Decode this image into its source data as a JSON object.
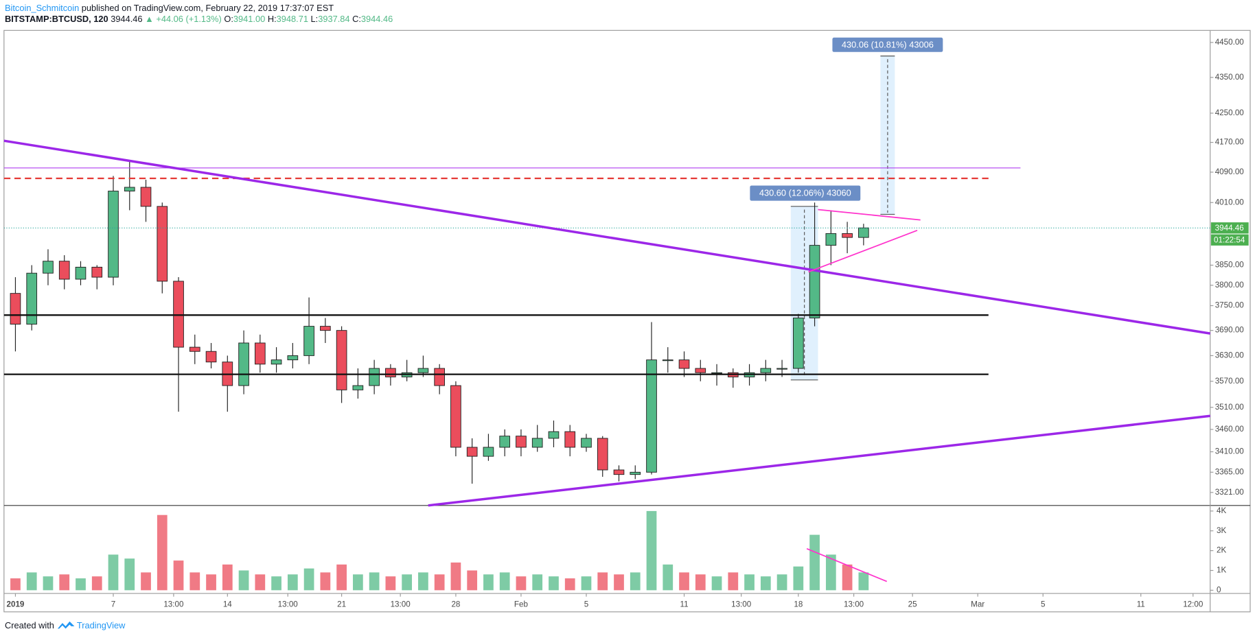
{
  "header": {
    "author": "Bitcoin_Schmitcoin",
    "published": "published on TradingView.com, February 22, 2019 17:37:07 EST",
    "symbol": "BITSTAMP:BTCUSD, 120",
    "last": "3944.46",
    "change": "▲ +44.06 (+1.13%)",
    "ohlc": [
      {
        "key": "O:",
        "value": "3941.00"
      },
      {
        "key": "H:",
        "value": "3948.71"
      },
      {
        "key": "L:",
        "value": "3937.84"
      },
      {
        "key": "C:",
        "value": "3944.46"
      }
    ]
  },
  "chart_data": {
    "type": "candlestick",
    "x": [
      1,
      2,
      3,
      4,
      5,
      6,
      7,
      8,
      9,
      10,
      11,
      12,
      13,
      14,
      15,
      16,
      17,
      18,
      19,
      20,
      21,
      22,
      23,
      24,
      25,
      26,
      27,
      28,
      29,
      30,
      31,
      32,
      33,
      34,
      35,
      36,
      37,
      38,
      39,
      40,
      41,
      42,
      43,
      44,
      45,
      46,
      47,
      48,
      49,
      50,
      51,
      52,
      53
    ],
    "open": [
      3780,
      3705,
      3830,
      3860,
      3815,
      3845,
      3820,
      4040,
      4050,
      4000,
      3810,
      3650,
      3640,
      3615,
      3560,
      3660,
      3610,
      3620,
      3630,
      3700,
      3690,
      3550,
      3560,
      3600,
      3580,
      3590,
      3600,
      3560,
      3420,
      3400,
      3420,
      3445,
      3420,
      3440,
      3455,
      3420,
      3440,
      3370,
      3360,
      3365,
      3620,
      3620,
      3600,
      3590,
      3590,
      3580,
      3590,
      3600,
      3600,
      3720,
      3900,
      3930,
      3920
    ],
    "high": [
      3820,
      3850,
      3890,
      3875,
      3860,
      3850,
      4080,
      4120,
      4070,
      4010,
      3820,
      3680,
      3660,
      3630,
      3690,
      3680,
      3650,
      3660,
      3770,
      3720,
      3700,
      3600,
      3620,
      3610,
      3620,
      3630,
      3610,
      3570,
      3440,
      3450,
      3460,
      3460,
      3470,
      3480,
      3470,
      3450,
      3445,
      3380,
      3380,
      3710,
      3650,
      3640,
      3620,
      3610,
      3600,
      3610,
      3620,
      3620,
      3730,
      4010,
      3990,
      3960,
      3955
    ],
    "low": [
      3640,
      3690,
      3800,
      3790,
      3800,
      3790,
      3800,
      3990,
      3960,
      3780,
      3500,
      3610,
      3600,
      3500,
      3540,
      3590,
      3590,
      3600,
      3610,
      3660,
      3520,
      3530,
      3540,
      3560,
      3570,
      3580,
      3540,
      3400,
      3340,
      3390,
      3400,
      3400,
      3410,
      3420,
      3400,
      3410,
      3355,
      3345,
      3350,
      3360,
      3590,
      3580,
      3570,
      3560,
      3555,
      3560,
      3570,
      3580,
      3590,
      3700,
      3850,
      3880,
      3900
    ],
    "close": [
      3705,
      3830,
      3860,
      3815,
      3845,
      3820,
      4040,
      4050,
      4000,
      3810,
      3650,
      3640,
      3615,
      3560,
      3660,
      3610,
      3620,
      3630,
      3700,
      3690,
      3550,
      3560,
      3600,
      3580,
      3590,
      3600,
      3560,
      3420,
      3400,
      3420,
      3445,
      3420,
      3440,
      3455,
      3420,
      3440,
      3370,
      3360,
      3365,
      3620,
      3620,
      3600,
      3590,
      3590,
      3580,
      3590,
      3600,
      3600,
      3720,
      3900,
      3930,
      3920,
      3944.46
    ],
    "volume": [
      600,
      900,
      700,
      800,
      600,
      700,
      1800,
      1600,
      900,
      3800,
      1500,
      900,
      800,
      1300,
      1000,
      800,
      700,
      800,
      1100,
      900,
      1300,
      800,
      900,
      700,
      800,
      900,
      800,
      1400,
      1000,
      800,
      900,
      700,
      800,
      700,
      600,
      700,
      900,
      800,
      900,
      4000,
      1300,
      900,
      800,
      700,
      900,
      800,
      700,
      800,
      1200,
      2800,
      1800,
      1300,
      900
    ],
    "up_color": "#53b987",
    "down_color": "#eb4d5c",
    "xlim": [
      0.3,
      74.25
    ],
    "xticks": [
      {
        "value": 1,
        "label": "2019"
      },
      {
        "value": 7,
        "label": "7"
      },
      {
        "value": 10.7,
        "label": "13:00"
      },
      {
        "value": 14,
        "label": "14"
      },
      {
        "value": 17.7,
        "label": "13:00"
      },
      {
        "value": 21,
        "label": "21"
      },
      {
        "value": 24.6,
        "label": "13:00"
      },
      {
        "value": 28,
        "label": "28"
      },
      {
        "value": 32,
        "label": "Feb"
      },
      {
        "value": 36,
        "label": "5"
      },
      {
        "value": 42,
        "label": "11"
      },
      {
        "value": 45.5,
        "label": "13:00"
      },
      {
        "value": 49,
        "label": "18"
      },
      {
        "value": 52.4,
        "label": "13:00"
      },
      {
        "value": 56,
        "label": "25"
      },
      {
        "value": 60,
        "label": "Mar"
      },
      {
        "value": 64,
        "label": "5"
      },
      {
        "value": 70,
        "label": "11"
      },
      {
        "value": 73.2,
        "label": "12:00"
      }
    ],
    "ylim": [
      3293,
      4485
    ],
    "log_scale": true,
    "yticks": [
      {
        "value": 4450,
        "label": "4450.00"
      },
      {
        "value": 4350,
        "label": "4350.00"
      },
      {
        "value": 4250,
        "label": "4250.00"
      },
      {
        "value": 4170,
        "label": "4170.00"
      },
      {
        "value": 4090,
        "label": "4090.00"
      },
      {
        "value": 4010,
        "label": "4010.00"
      },
      {
        "value": 3850,
        "label": "3850.00"
      },
      {
        "value": 3800,
        "label": "3800.00"
      },
      {
        "value": 3750,
        "label": "3750.00"
      },
      {
        "value": 3690,
        "label": "3690.00"
      },
      {
        "value": 3630,
        "label": "3630.00"
      },
      {
        "value": 3570,
        "label": "3570.00"
      },
      {
        "value": 3510,
        "label": "3510.00"
      },
      {
        "value": 3460,
        "label": "3460.00"
      },
      {
        "value": 3410,
        "label": "3410.00"
      },
      {
        "value": 3365,
        "label": "3365.00"
      },
      {
        "value": 3321,
        "label": "3321.00"
      }
    ],
    "volume_ylim": [
      0,
      4200
    ],
    "volume_yticks": [
      0,
      {
        "value": 1000,
        "label": "1K"
      },
      {
        "value": 2000,
        "label": "2K"
      },
      {
        "value": 3000,
        "label": "3K"
      },
      {
        "value": 4000,
        "label": "4K"
      }
    ]
  },
  "annotations": {
    "measure_1": "430.60 (12.06%) 43060",
    "measure_2": "430.06 (10.81%) 43006",
    "price_label": "3944.46",
    "countdown": "01:22:54"
  },
  "footer": {
    "created": "Created with",
    "brand": "TradingView"
  }
}
